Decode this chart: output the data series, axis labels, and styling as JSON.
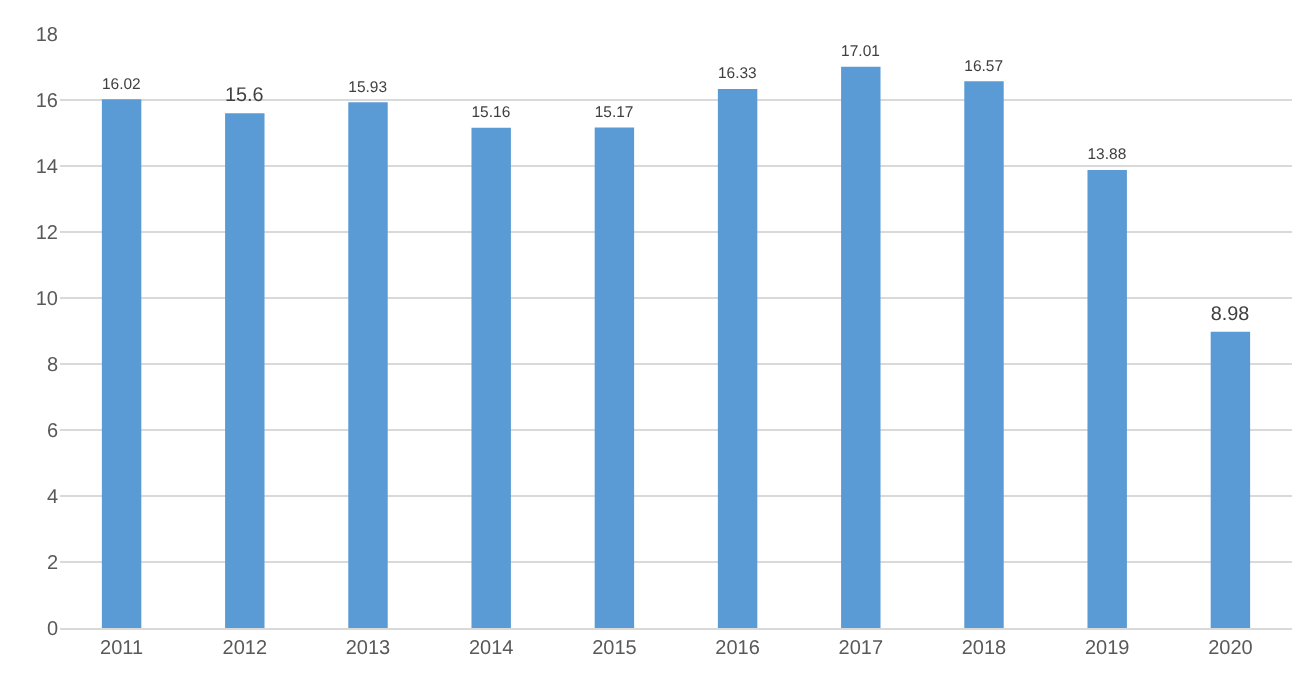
{
  "chart_data": {
    "type": "bar",
    "categories": [
      "2011",
      "2012",
      "2013",
      "2014",
      "2015",
      "2016",
      "2017",
      "2018",
      "2019",
      "2020"
    ],
    "values": [
      16.02,
      15.6,
      15.93,
      15.16,
      15.17,
      16.33,
      17.01,
      16.57,
      13.88,
      8.98
    ],
    "color": "#5b9bd5",
    "ylim": [
      0,
      18
    ],
    "yticks": [
      0,
      2,
      4,
      6,
      8,
      10,
      12,
      14,
      16,
      18
    ],
    "grid": "y",
    "data_labels": true
  }
}
